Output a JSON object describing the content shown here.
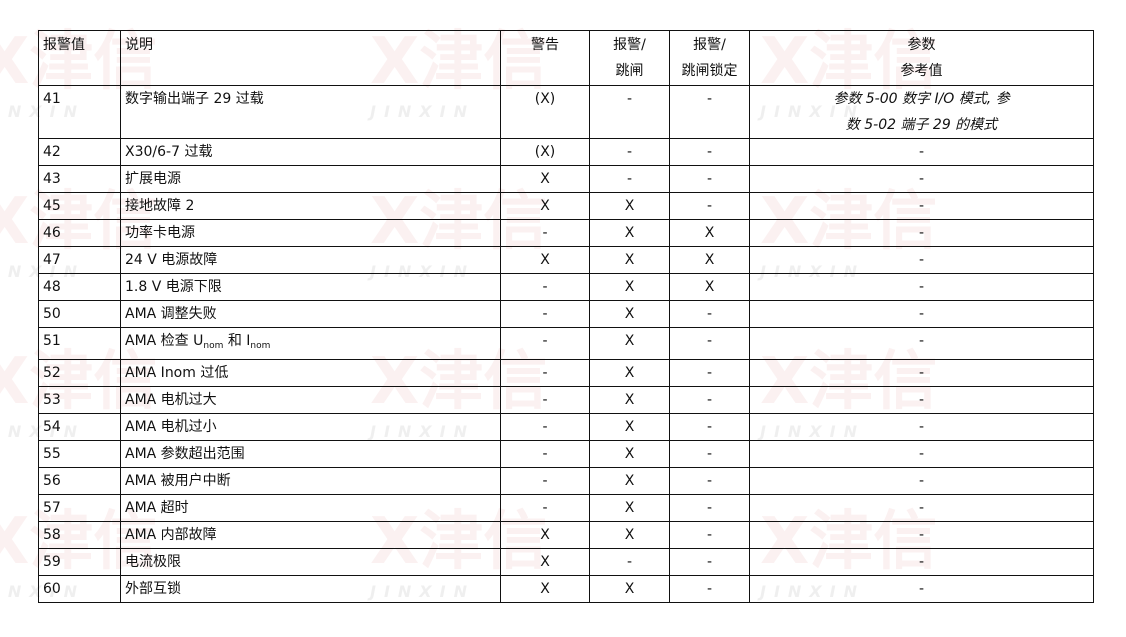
{
  "watermark": "X津信 JINXIN",
  "headers": [
    "报警值",
    "说明",
    "警告",
    "报警/\n跳闸",
    "报警/\n跳闸锁定",
    "参数\n参考值"
  ],
  "rows": [
    {
      "code": "41",
      "desc": "数字输出端子 29 过载",
      "warning": "(X)",
      "alarm_trip": "-",
      "alarm_trip_lock": "-",
      "param": "参数 5-00 数字 I/O 模式, 参\n数 5-02 端子 29 的模式"
    },
    {
      "code": "42",
      "desc": "X30/6-7 过载",
      "warning": "(X)",
      "alarm_trip": "-",
      "alarm_trip_lock": "-",
      "param": "-"
    },
    {
      "code": "43",
      "desc": "扩展电源",
      "warning": "X",
      "alarm_trip": "-",
      "alarm_trip_lock": "-",
      "param": "-"
    },
    {
      "code": "45",
      "desc": "接地故障 2",
      "warning": "X",
      "alarm_trip": "X",
      "alarm_trip_lock": "-",
      "param": "-"
    },
    {
      "code": "46",
      "desc": "功率卡电源",
      "warning": "-",
      "alarm_trip": "X",
      "alarm_trip_lock": "X",
      "param": "-"
    },
    {
      "code": "47",
      "desc": "24 V 电源故障",
      "warning": "X",
      "alarm_trip": "X",
      "alarm_trip_lock": "X",
      "param": "-"
    },
    {
      "code": "48",
      "desc": "1.8 V 电源下限",
      "warning": "-",
      "alarm_trip": "X",
      "alarm_trip_lock": "X",
      "param": "-"
    },
    {
      "code": "50",
      "desc": "AMA 调整失败",
      "warning": "-",
      "alarm_trip": "X",
      "alarm_trip_lock": "-",
      "param": "-"
    },
    {
      "code": "51",
      "desc": "AMA 检查 U",
      "desc_sub1": "nom",
      "desc_mid": " 和 I",
      "desc_sub2": "nom",
      "warning": "-",
      "alarm_trip": "X",
      "alarm_trip_lock": "-",
      "param": "-"
    },
    {
      "code": "52",
      "desc": "AMA Inom 过低",
      "warning": "-",
      "alarm_trip": "X",
      "alarm_trip_lock": "-",
      "param": "-"
    },
    {
      "code": "53",
      "desc": "AMA 电机过大",
      "warning": "-",
      "alarm_trip": "X",
      "alarm_trip_lock": "-",
      "param": "-"
    },
    {
      "code": "54",
      "desc": "AMA 电机过小",
      "warning": "-",
      "alarm_trip": "X",
      "alarm_trip_lock": "-",
      "param": "-"
    },
    {
      "code": "55",
      "desc": "AMA 参数超出范围",
      "warning": "-",
      "alarm_trip": "X",
      "alarm_trip_lock": "-",
      "param": "-"
    },
    {
      "code": "56",
      "desc": "AMA 被用户中断",
      "warning": "-",
      "alarm_trip": "X",
      "alarm_trip_lock": "-",
      "param": "-"
    },
    {
      "code": "57",
      "desc": "AMA 超时",
      "warning": "-",
      "alarm_trip": "X",
      "alarm_trip_lock": "-",
      "param": "-"
    },
    {
      "code": "58",
      "desc": "AMA 内部故障",
      "warning": "X",
      "alarm_trip": "X",
      "alarm_trip_lock": "-",
      "param": "-"
    },
    {
      "code": "59",
      "desc": "电流极限",
      "warning": "X",
      "alarm_trip": "-",
      "alarm_trip_lock": "-",
      "param": "-"
    },
    {
      "code": "60",
      "desc": "外部互锁",
      "warning": "X",
      "alarm_trip": "X",
      "alarm_trip_lock": "-",
      "param": "-"
    }
  ]
}
